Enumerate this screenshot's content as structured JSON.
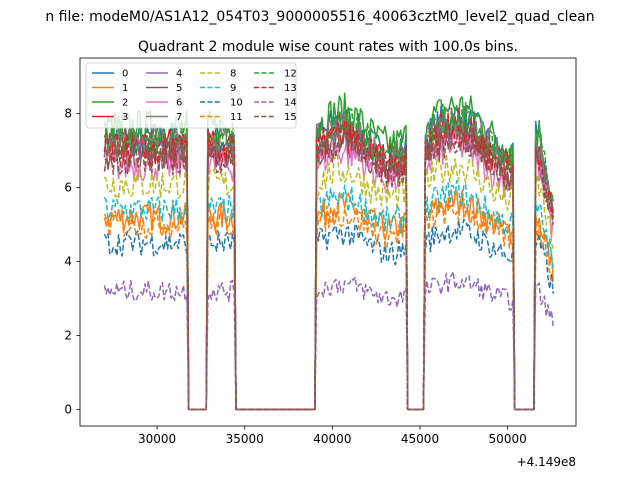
{
  "suptitle": "n file: modeM0/AS1A12_054T03_9000005516_40063cztM0_level2_quad_clean",
  "chart_data": {
    "type": "line",
    "title": "Quadrant 2 module wise count rates with 100.0s bins.",
    "xlabel": "",
    "ylabel": "",
    "x_offset_label": "+4.149e8",
    "xlim": [
      25600,
      53900
    ],
    "ylim": [
      -0.45,
      9.5
    ],
    "xticks": [
      30000,
      35000,
      40000,
      45000,
      50000
    ],
    "xtick_labels": [
      "30000",
      "35000",
      "40000",
      "45000",
      "50000"
    ],
    "yticks": [
      0,
      2,
      4,
      6,
      8
    ],
    "ytick_labels": [
      "0",
      "2",
      "4",
      "6",
      "8"
    ],
    "grid": false,
    "legend": {
      "placement": "upper-left",
      "columns": 4
    },
    "active_segments": [
      [
        27000,
        31700
      ],
      [
        32900,
        34450
      ],
      [
        39100,
        44200
      ],
      [
        45300,
        50300
      ],
      [
        51600,
        52600
      ]
    ],
    "series": [
      {
        "name": "0",
        "color": "#1f77b4",
        "dash": "solid",
        "level": 7.3
      },
      {
        "name": "1",
        "color": "#ff7f0e",
        "dash": "solid",
        "level": 5.2
      },
      {
        "name": "2",
        "color": "#2ca02c",
        "dash": "solid",
        "level": 7.6
      },
      {
        "name": "3",
        "color": "#d62728",
        "dash": "solid",
        "level": 7.1
      },
      {
        "name": "4",
        "color": "#9467bd",
        "dash": "solid",
        "level": 7.0
      },
      {
        "name": "5",
        "color": "#8c564b",
        "dash": "solid",
        "level": 6.9
      },
      {
        "name": "6",
        "color": "#e377c2",
        "dash": "solid",
        "level": 6.6
      },
      {
        "name": "7",
        "color": "#7f7f7f",
        "dash": "solid",
        "level": 7.2
      },
      {
        "name": "8",
        "color": "#bcbd22",
        "dash": "dashed",
        "level": 6.1
      },
      {
        "name": "9",
        "color": "#17becf",
        "dash": "dashed",
        "level": 5.4
      },
      {
        "name": "10",
        "color": "#1f77b4",
        "dash": "dashed",
        "level": 4.5
      },
      {
        "name": "11",
        "color": "#ff7f0e",
        "dash": "dashed",
        "level": 5.0
      },
      {
        "name": "12",
        "color": "#2ca02c",
        "dash": "dashed",
        "level": 7.3
      },
      {
        "name": "13",
        "color": "#d62728",
        "dash": "dashed",
        "level": 7.0
      },
      {
        "name": "14",
        "color": "#9467bd",
        "dash": "dashed",
        "level": 3.2
      },
      {
        "name": "15",
        "color": "#8c564b",
        "dash": "dashed",
        "level": 6.8
      }
    ]
  }
}
